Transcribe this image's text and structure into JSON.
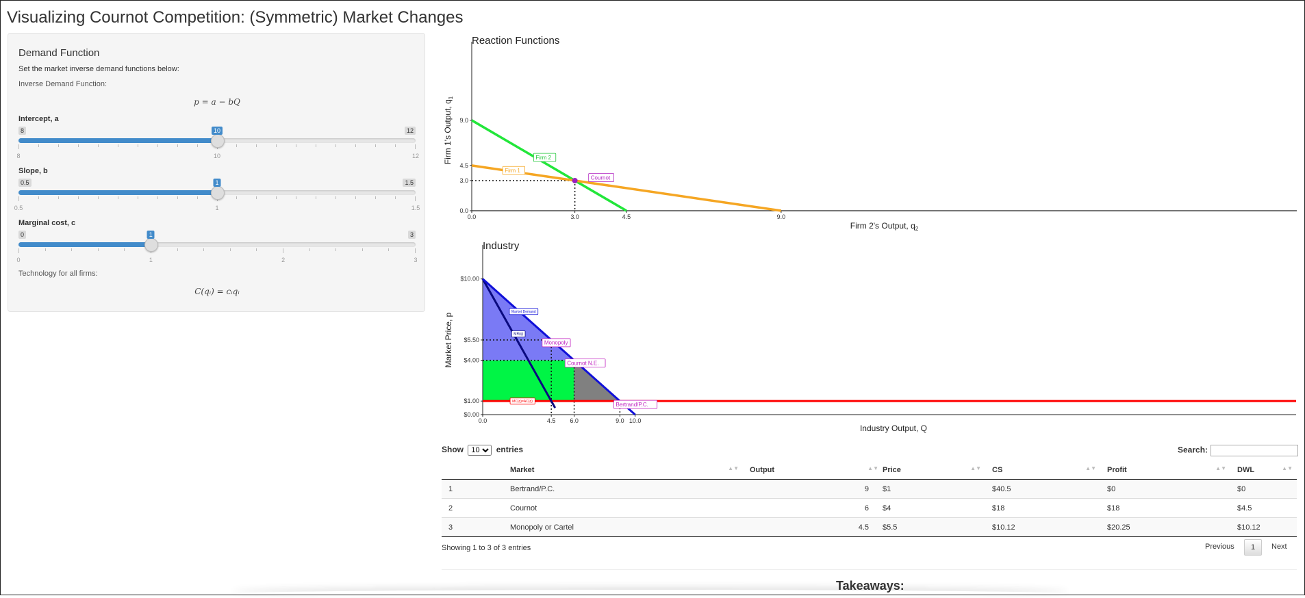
{
  "page": {
    "title": "Visualizing Cournot Competition: (Symmetric) Market Changes"
  },
  "sidebar": {
    "heading": "Demand Function",
    "description": "Set the market inverse demand functions below:",
    "inverse_demand_label": "Inverse Demand Function:",
    "inverse_demand_eq": "p = a − bQ",
    "technology_label": "Technology for all firms:",
    "technology_eq": "C(qᵢ) = cᵢqᵢ",
    "sliders": [
      {
        "label": "Intercept, a",
        "min": "8",
        "max": "12",
        "value": "10",
        "fraction": 0.5,
        "ticks": [
          "8",
          "10",
          "12"
        ]
      },
      {
        "label": "Slope, b",
        "min": "0.5",
        "max": "1.5",
        "value": "1",
        "fraction": 0.5,
        "ticks": [
          "0.5",
          "1",
          "1.5"
        ]
      },
      {
        "label": "Marginal cost, c",
        "min": "0",
        "max": "3",
        "value": "1",
        "fraction": 0.3333,
        "ticks": [
          "0",
          "1",
          "2",
          "3"
        ]
      }
    ]
  },
  "chart_data": [
    {
      "type": "line",
      "title": "Reaction Functions",
      "xlabel": "Firm 2's Output, q",
      "xlabel_sub": "2",
      "ylabel": "Firm 1's Output, q",
      "ylabel_sub": "1",
      "xlim": [
        0,
        24
      ],
      "ylim": [
        0,
        16
      ],
      "xticks": [
        "0.0",
        "3.0",
        "4.5",
        "9.0"
      ],
      "xtick_values": [
        0,
        3,
        4.5,
        9
      ],
      "yticks": [
        "0.0",
        "3.0",
        "4.5",
        "9.0"
      ],
      "ytick_values": [
        0,
        3,
        4.5,
        9
      ],
      "series": [
        {
          "name": "Firm 2",
          "color": "#22e63a",
          "x": [
            0,
            4.5
          ],
          "y": [
            9,
            0
          ]
        },
        {
          "name": "Firm 1",
          "color": "#f5a623",
          "x": [
            0,
            9
          ],
          "y": [
            4.5,
            0
          ]
        }
      ],
      "annotations": [
        {
          "text": "Firm 2",
          "x": 1.8,
          "y": 5.3,
          "color": "#22c73a"
        },
        {
          "text": "Firm 1",
          "x": 0.9,
          "y": 4.0,
          "color": "#f5a623"
        },
        {
          "text": "Cournot",
          "x": 3.4,
          "y": 3.3,
          "color": "#b020c0"
        }
      ],
      "cournot_point": {
        "x": 3,
        "y": 3
      }
    },
    {
      "type": "area",
      "title": "Industry",
      "xlabel": "Industry Output, Q",
      "ylabel": "Market Price, p",
      "xlim": [
        0,
        53
      ],
      "ylim": [
        0,
        12
      ],
      "xticks": [
        "0.0",
        "4.5",
        "6.0",
        "9.0",
        "10.0"
      ],
      "xtick_values": [
        0,
        4.5,
        6,
        9,
        10
      ],
      "yticks": [
        "$0.00",
        "$1.00",
        "$4.00",
        "$5.50",
        "$10.00"
      ],
      "ytick_values": [
        0,
        1,
        4,
        5.5,
        10
      ],
      "demand": {
        "name": "Market Demand",
        "x": [
          0,
          10
        ],
        "y": [
          10,
          0
        ],
        "color": "#1010d8"
      },
      "marginal_revenue": {
        "name": "MR",
        "x": [
          0,
          4.75
        ],
        "y": [
          10,
          0.5
        ],
        "color": "#0a0a80"
      },
      "marginal_cost": {
        "name": "MC",
        "value": 1,
        "color": "#ff0000"
      },
      "regions": [
        {
          "name": "consumer-surplus",
          "color": "#7a7af5"
        },
        {
          "name": "producer-surplus",
          "color": "#00f545"
        },
        {
          "name": "deadweight-loss",
          "color": "#808080"
        }
      ],
      "points": [
        {
          "label": "Monopoly",
          "Q": 4.5,
          "p": 5.5
        },
        {
          "label": "Cournot N.E.",
          "Q": 6,
          "p": 4
        },
        {
          "label": "Bertrand/P.C.",
          "Q": 9,
          "p": 1
        }
      ],
      "labels": {
        "demand": "Market Demand",
        "mr": "MR(q)",
        "mc": "MC(q)=AC(q)"
      }
    }
  ],
  "table": {
    "show_label": "Show",
    "entries_label": "entries",
    "page_length": "10",
    "search_label": "Search:",
    "columns": [
      "",
      "Market",
      "Output",
      "Price",
      "CS",
      "Profit",
      "DWL"
    ],
    "rows": [
      [
        "1",
        "Bertrand/P.C.",
        "9",
        "$1",
        "$40.5",
        "$0",
        "$0"
      ],
      [
        "2",
        "Cournot",
        "6",
        "$4",
        "$18",
        "$18",
        "$4.5"
      ],
      [
        "3",
        "Monopoly or Cartel",
        "4.5",
        "$5.5",
        "$10.12",
        "$20.25",
        "$10.12"
      ]
    ],
    "info": "Showing 1 to 3 of 3 entries",
    "pagination": {
      "previous": "Previous",
      "current": "1",
      "next": "Next"
    }
  },
  "takeaways_heading": "Takeaways:"
}
